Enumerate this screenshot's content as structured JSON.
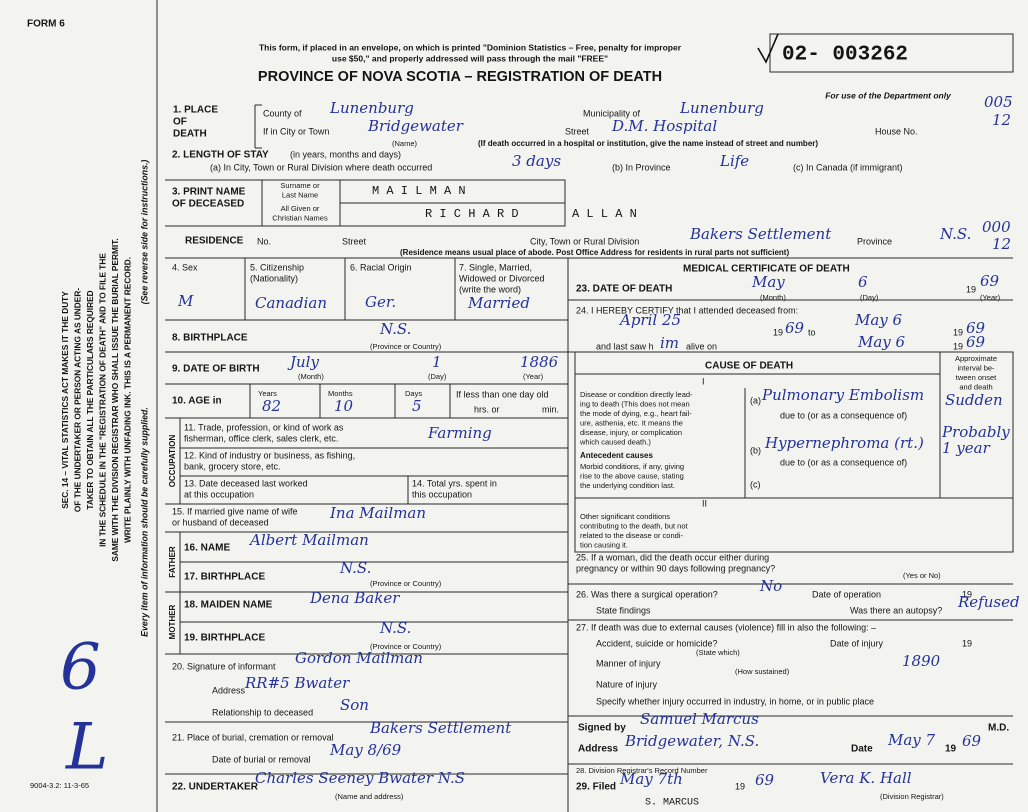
{
  "header": {
    "form_number": "FORM 6",
    "envelope_note": [
      "This form, if placed in an envelope, on which is printed \"Dominion Statistics – Free, penalty for improper",
      "use $50,\" and properly addressed will pass through the mail \"FREE\""
    ],
    "title": "PROVINCE OF NOVA SCOTIA – REGISTRATION OF DEATH",
    "registration_number": "02- 003262",
    "department_use": "For use of the Department only",
    "department_codes": [
      "005",
      "12",
      "000",
      "12"
    ]
  },
  "side": {
    "statute": [
      "SEC. 14 – VITAL STATISTICS ACT MAKES IT THE DUTY",
      "OF THE UNDERTAKER OR PERSON ACTING AS UNDER-",
      "TAKER TO OBTAIN ALL THE PARTICULARS REQUIRED",
      "IN THE SCHEDULE IN THE \"REGISTRATION OF DEATH\" AND TO FILE THE",
      "SAME WITH THE DIVISION REGISTRAR WHO SHALL ISSUE THE BURIAL PERMIT.",
      "WRITE PLAINLY WITH UNFADING INK. THIS IS A PERMANENT RECORD."
    ],
    "instructions": "(See reverse side for instructions.)",
    "reminder": "Every item of information should be carefully supplied.",
    "margin_marks": [
      "6",
      "L"
    ],
    "form_code": "9004-3.2: 11-3-65"
  },
  "place_of_death": {
    "label": [
      "1. PLACE",
      "OF",
      "DEATH"
    ],
    "county_label": "County of",
    "county": "Lunenburg",
    "municipality_label": "Municipality of",
    "municipality": "Lunenburg",
    "city_label": "If in City or Town",
    "city": "Bridgewater",
    "name_note": "(Name)",
    "street_label": "Street",
    "street": "D.M. Hospital",
    "house_label": "House No.",
    "hospital_note": "(If death occurred in a hospital or institution, give the name instead of street and number)"
  },
  "length_of_stay": {
    "label": "2. LENGTH OF STAY",
    "units": "(in years, months and days)",
    "city_label": "(a) In City, Town or Rural Division where death occurred",
    "city": "3 days",
    "province_label": "(b) In Province",
    "province": "Life",
    "canada_label": "(c) In Canada (if immigrant)"
  },
  "name": {
    "label": [
      "3. PRINT NAME",
      "OF DECEASED"
    ],
    "surname_label": [
      "Surname or",
      "Last Name"
    ],
    "given_label": [
      "All Given or",
      "Christian Names"
    ],
    "surname": "M A I L M A N",
    "given": [
      "R I C H A R D",
      "A L L A N"
    ]
  },
  "residence": {
    "label": "RESIDENCE",
    "no_label": "No.",
    "street_label": "Street",
    "division_label": "City, Town or Rural Division",
    "division": "Bakers Settlement",
    "province_label": "Province",
    "province": "N.S.",
    "note": "(Residence means usual place of abode. Post Office Address for residents in rural parts not sufficient)"
  },
  "personal": {
    "sex_label": "4. Sex",
    "sex": "M",
    "citizenship_label": [
      "5. Citizenship",
      "(Nationality)"
    ],
    "citizenship": "Canadian",
    "racial_origin_label": "6. Racial Origin",
    "racial_origin": "Ger.",
    "marital_label": [
      "7. Single, Married,",
      "Widowed or Divorced",
      "(write the word)"
    ],
    "marital": "Married",
    "birthplace_label": "8. BIRTHPLACE",
    "birthplace": "N.S.",
    "birthplace_note": "(Province or Country)",
    "birth_label": "9. DATE OF BIRTH",
    "birth_month": "July",
    "birth_day": "1",
    "birth_year": "1886",
    "month_note": "(Month)",
    "day_note": "(Day)",
    "year_note": "(Year)",
    "age_label": "10. AGE in",
    "years_label": "Years",
    "years": "82",
    "months_label": "Months",
    "months": "10",
    "days_label": "Days",
    "days": "5",
    "infant_label": "If less than one day old",
    "hours_label": "hrs. or",
    "minutes_label": "min."
  },
  "occupation": {
    "side_label": "OCCUPATION",
    "trade_label": [
      "11. Trade, profession, or kind of work as",
      "fisherman, office clerk, sales clerk, etc."
    ],
    "trade": "Farming",
    "industry_label": [
      "12. Kind of industry or business, as fishing,",
      "bank, grocery store, etc."
    ],
    "last_worked_label": [
      "13. Date deceased last worked",
      "at this occupation"
    ],
    "years_label": [
      "14. Total yrs. spent in",
      "this occupation"
    ]
  },
  "spouse": {
    "label": [
      "15. If married give name of wife",
      "or husband of deceased"
    ],
    "name": "Ina Mailman"
  },
  "father": {
    "side_label": "FATHER",
    "name_label": "16. NAME",
    "name": "Albert Mailman",
    "birthplace_label": "17. BIRTHPLACE",
    "birthplace": "N.S.",
    "birthplace_note": "(Province or Country)"
  },
  "mother": {
    "side_label": "MOTHER",
    "maiden_label": "18. MAIDEN NAME",
    "maiden": "Dena Baker",
    "birthplace_label": "19. BIRTHPLACE",
    "birthplace": "N.S.",
    "birthplace_note": "(Province or Country)"
  },
  "informant": {
    "label": "20. Signature of informant",
    "name": "Gordon Mailman",
    "address_label": "Address",
    "address": "RR#5 Bwater",
    "relationship_label": "Relationship to deceased",
    "relationship": "Son"
  },
  "burial": {
    "place_label": "21. Place of burial, cremation or removal",
    "place": "Bakers Settlement",
    "date_label": "Date of burial or removal",
    "date": "May 8/69"
  },
  "undertaker": {
    "label": "22. UNDERTAKER",
    "value": "Charles Seeney Bwater N.S",
    "note": "(Name and address)"
  },
  "medical": {
    "heading": "MEDICAL CERTIFICATE OF DEATH",
    "date_of_death": {
      "label": "23. DATE OF DEATH",
      "month": "May",
      "day": "6",
      "century": "19",
      "year": "69",
      "month_note": "(Month)",
      "day_note": "(Day)",
      "year_note": "(Year)"
    },
    "attendance": {
      "label": "24. I HEREBY CERTIFY that I attended deceased from:",
      "from": "April 25",
      "from_century": "19",
      "from_year": "69",
      "to_label": "to",
      "to": "May 6",
      "to_century": "19",
      "to_year": "69",
      "last_seen_label": "and last saw h",
      "last_seen_pronoun": "im",
      "alive_label": "alive on",
      "last_seen": "May 6",
      "last_seen_century": "19",
      "last_seen_year": "69"
    },
    "cause": {
      "heading": "CAUSE OF DEATH",
      "part_1": "I",
      "direct_label": [
        "Disease or condition directly lead-",
        "ing to death (This does not mean",
        "the mode of dying, e.g., heart fail-",
        "ure, asthenia, etc. It means the",
        "disease, injury, or complication",
        "which caused death.)"
      ],
      "a_label": "(a)",
      "a": "Pulmonary Embolism",
      "due_to": "due to (or as a consequence of)",
      "interval_label": [
        "Approximate",
        "interval be-",
        "tween onset",
        "and death"
      ],
      "a_interval": "Sudden",
      "antecedent_label": "Antecedent causes",
      "antecedent_note": [
        "Morbid conditions, if any, giving",
        "rise to the above cause, stating",
        "the underlying condition last."
      ],
      "b_label": "(b)",
      "b": "Hypernephroma (rt.)",
      "b_due_to": "due to (or as a consequence of)",
      "b_interval": [
        "Probably",
        "1 year"
      ],
      "c_label": "(c)",
      "part_2": "II",
      "other_label": [
        "Other significant conditions",
        "contributing to the death, but not",
        "related to the disease or condi-",
        "tion causing it."
      ]
    },
    "pregnancy": {
      "label": [
        "25. If a woman, did the death occur either during",
        "      pregnancy or within 90 days following pregnancy?"
      ],
      "note": "(Yes or No)"
    },
    "operation": {
      "label": "26. Was there a surgical operation?",
      "value": "No",
      "date_label": "Date of operation",
      "century": "19",
      "findings_label": "State findings",
      "autopsy_label": "Was there an autopsy?",
      "autopsy": "Refused"
    },
    "external": {
      "label": "27. If death was due to external causes (violence) fill in also the following: –",
      "kind_label": "Accident, suicide or homicide?",
      "kind_note": "(State which)",
      "date_label": "Date of injury",
      "century": "19",
      "manner_label": "Manner of injury",
      "manner": "1890",
      "manner_note": "(How sustained)",
      "nature_label": "Nature of injury",
      "place_label": "Specify whether injury occurred in industry, in home, or in public place"
    },
    "signature": {
      "signed_label": "Signed by",
      "signed": "Samuel Marcus",
      "degree": "M.D.",
      "address_label": "Address",
      "address": "Bridgewater, N.S.",
      "date_label": "Date",
      "date": "May 7",
      "century": "19",
      "year": "69",
      "stamp": "S. MARCUS"
    },
    "registration": {
      "record_label": "28. Division Registrar's Record Number",
      "filed_label": "29. Filed",
      "filed": "May 7th",
      "century": "19",
      "year": "69",
      "registrar": "Vera K. Hall",
      "registrar_note": "(Division Registrar)"
    }
  }
}
